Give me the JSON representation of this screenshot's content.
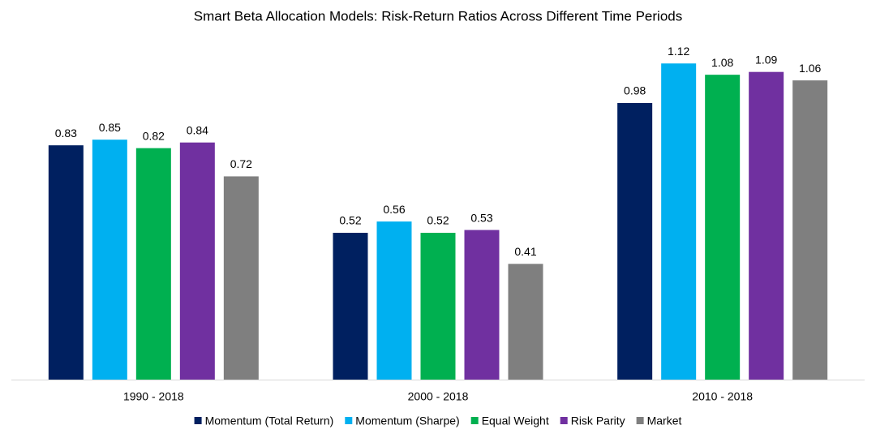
{
  "chart_data": {
    "type": "bar",
    "title": "Smart Beta Allocation Models: Risk-Return Ratios Across Different Time Periods",
    "categories": [
      "1990 - 2018",
      "2000 - 2018",
      "2010 - 2018"
    ],
    "series": [
      {
        "name": "Momentum (Total Return)",
        "color": "#002060",
        "values": [
          0.83,
          0.52,
          0.98
        ]
      },
      {
        "name": "Momentum (Sharpe)",
        "color": "#00b0f0",
        "values": [
          0.85,
          0.56,
          1.12
        ]
      },
      {
        "name": "Equal Weight",
        "color": "#00b050",
        "values": [
          0.82,
          0.52,
          1.08
        ]
      },
      {
        "name": "Risk Parity",
        "color": "#7030a0",
        "values": [
          0.84,
          0.53,
          1.09
        ]
      },
      {
        "name": "Market",
        "color": "#7f7f7f",
        "values": [
          0.72,
          0.41,
          1.06
        ]
      }
    ],
    "legend": "bottom"
  }
}
